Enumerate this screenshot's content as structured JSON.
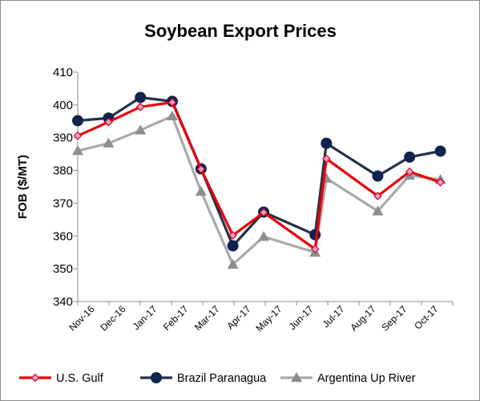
{
  "chart_data": {
    "type": "line",
    "title": "Soybean Export Prices",
    "xlabel": "",
    "ylabel": "FOB ($/MT)",
    "ylim": [
      340,
      410
    ],
    "yticks": [
      340,
      350,
      360,
      370,
      380,
      390,
      400,
      410
    ],
    "grid": false,
    "legend_position": "bottom",
    "x_tick_labels": [
      "Nov-16",
      "Dec-16",
      "Jan-17",
      "Feb-17",
      "Mar-17",
      "Apr-17",
      "May-17",
      "Jun-17",
      "Jul-17",
      "Aug-17",
      "Sep-17",
      "Oct-17"
    ],
    "series": [
      {
        "name": "U.S. Gulf",
        "color": "#e8000b",
        "marker": "diamond",
        "marker_color": "#d1a3d9",
        "points": [
          {
            "x": "2016-11-01",
            "y": 390.6
          },
          {
            "x": "2016-12-01",
            "y": 394.8
          },
          {
            "x": "2017-01-01",
            "y": 399.4
          },
          {
            "x": "2017-02-01",
            "y": 400.8
          },
          {
            "x": "2017-03-01",
            "y": 380.4
          },
          {
            "x": "2017-04-01",
            "y": 360.2
          },
          {
            "x": "2017-05-01",
            "y": 367.2
          },
          {
            "x": "2017-06-20",
            "y": 356.0
          },
          {
            "x": "2017-07-01",
            "y": 383.6
          },
          {
            "x": "2017-08-20",
            "y": 372.2
          },
          {
            "x": "2017-09-20",
            "y": 379.6
          },
          {
            "x": "2017-10-20",
            "y": 376.4
          }
        ]
      },
      {
        "name": "Brazil Paranagua",
        "color": "#243147",
        "marker": "circle",
        "marker_color": "#0f2350",
        "points": [
          {
            "x": "2016-11-01",
            "y": 395.2
          },
          {
            "x": "2016-12-01",
            "y": 396.0
          },
          {
            "x": "2017-01-01",
            "y": 402.3
          },
          {
            "x": "2017-02-01",
            "y": 401.1
          },
          {
            "x": "2017-03-01",
            "y": 380.5
          },
          {
            "x": "2017-04-01",
            "y": 357.0
          },
          {
            "x": "2017-05-01",
            "y": 367.3
          },
          {
            "x": "2017-06-20",
            "y": 360.4
          },
          {
            "x": "2017-07-01",
            "y": 388.3
          },
          {
            "x": "2017-08-20",
            "y": 378.3
          },
          {
            "x": "2017-09-20",
            "y": 384.1
          },
          {
            "x": "2017-10-20",
            "y": 385.9
          }
        ]
      },
      {
        "name": "Argentina Up River",
        "color": "#a9a9a9",
        "marker": "triangle",
        "marker_color": "#8e8e8e",
        "points": [
          {
            "x": "2016-11-01",
            "y": 386.0
          },
          {
            "x": "2016-12-01",
            "y": 388.3
          },
          {
            "x": "2017-01-01",
            "y": 392.3
          },
          {
            "x": "2017-02-01",
            "y": 396.6
          },
          {
            "x": "2017-03-01",
            "y": 373.6
          },
          {
            "x": "2017-04-01",
            "y": 351.3
          },
          {
            "x": "2017-05-01",
            "y": 359.8
          },
          {
            "x": "2017-06-20",
            "y": 355.0
          },
          {
            "x": "2017-07-01",
            "y": 377.6
          },
          {
            "x": "2017-08-20",
            "y": 367.6
          },
          {
            "x": "2017-09-20",
            "y": 378.5
          },
          {
            "x": "2017-10-20",
            "y": 377.2
          }
        ]
      }
    ]
  }
}
